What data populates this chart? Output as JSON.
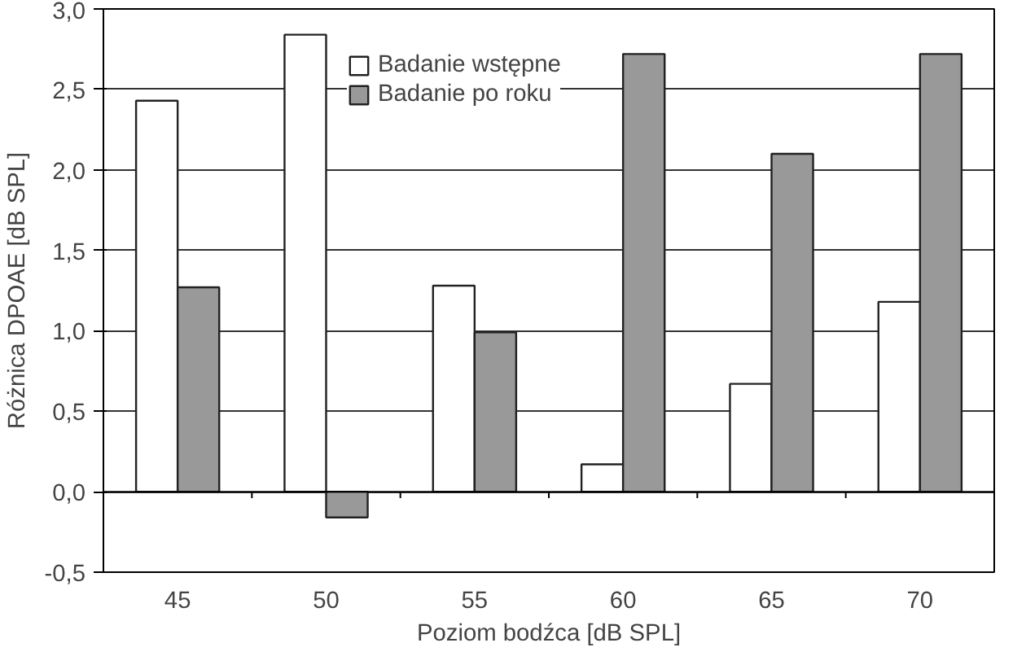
{
  "chart_data": {
    "type": "bar",
    "xlabel": "Poziom bodźca [dB SPL]",
    "ylabel": "Różnica DPOAE [dB SPL]",
    "categories": [
      "45",
      "50",
      "55",
      "60",
      "65",
      "70"
    ],
    "series": [
      {
        "name": "Badanie wstępne",
        "color": "#ffffff",
        "values": [
          2.43,
          2.84,
          1.28,
          0.17,
          0.67,
          1.18
        ]
      },
      {
        "name": "Badanie po roku",
        "color": "#999999",
        "values": [
          1.27,
          -0.16,
          0.99,
          2.72,
          2.1,
          2.72
        ]
      }
    ],
    "ylim": [
      -0.5,
      3.0
    ],
    "yticks": [
      {
        "value": -0.5,
        "label": "-0,5"
      },
      {
        "value": 0,
        "label": "0,0"
      },
      {
        "value": 0.5,
        "label": "0,5"
      },
      {
        "value": 1,
        "label": "1,0"
      },
      {
        "value": 1.5,
        "label": "1,5"
      },
      {
        "value": 2,
        "label": "2,0"
      },
      {
        "value": 2.5,
        "label": "2,5"
      },
      {
        "value": 3,
        "label": "3,0"
      }
    ],
    "grid": "y",
    "legend": "top"
  }
}
